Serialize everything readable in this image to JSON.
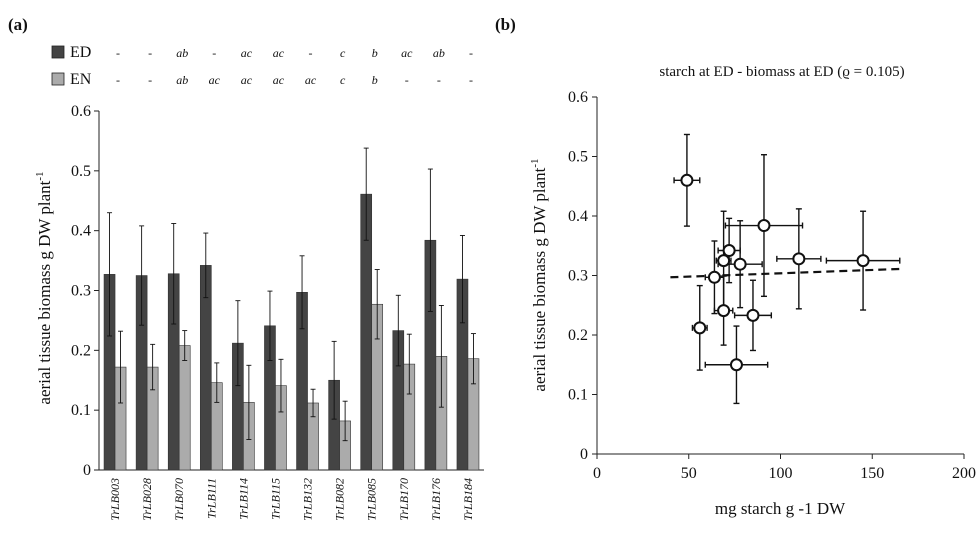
{
  "colors": {
    "ED": "#444444",
    "EN": "#ababab",
    "axis": "#222222",
    "marker_fill": "#ffffff"
  },
  "panels": {
    "a": "(a)",
    "b": "(b)"
  },
  "chart_data": [
    {
      "type": "bar",
      "ylabel": "aerial tissue biomass g DW plant-1",
      "ylabel_sup": "-1",
      "ylim": [
        0,
        0.6
      ],
      "yticks": [
        "0",
        "0.1",
        "0.2",
        "0.3",
        "0.4",
        "0.5",
        "0.6"
      ],
      "categories": [
        "TrLB003",
        "TrLB028",
        "TrLB070",
        "TrLB111",
        "TrLB114",
        "TrLB115",
        "TrLB132",
        "TrLB082",
        "TrLB085",
        "TrLB170",
        "TrLB176",
        "TrLB184"
      ],
      "series": [
        {
          "name": "ED",
          "values": [
            0.327,
            0.325,
            0.328,
            0.342,
            0.212,
            0.241,
            0.297,
            0.15,
            0.461,
            0.233,
            0.384,
            0.319
          ],
          "errors": [
            0.103,
            0.083,
            0.084,
            0.054,
            0.071,
            0.058,
            0.061,
            0.065,
            0.077,
            0.059,
            0.119,
            0.073
          ],
          "letters": [
            "-",
            "-",
            "ab",
            "-",
            "ac",
            "ac",
            "-",
            "c",
            "b",
            "ac",
            "ab",
            "-"
          ]
        },
        {
          "name": "EN",
          "values": [
            0.172,
            0.172,
            0.208,
            0.146,
            0.113,
            0.141,
            0.112,
            0.082,
            0.277,
            0.177,
            0.19,
            0.186
          ],
          "errors": [
            0.06,
            0.038,
            0.025,
            0.033,
            0.062,
            0.044,
            0.023,
            0.033,
            0.058,
            0.05,
            0.085,
            0.042
          ],
          "letters": [
            "-",
            "-",
            "ab",
            "ac",
            "ac",
            "ac",
            "ac",
            "c",
            "b",
            "-",
            "-",
            "-"
          ]
        }
      ]
    },
    {
      "type": "scatter",
      "title": "starch at ED - biomass at ED (ϱ = 0.105)",
      "xlabel": "mg starch g -1 DW",
      "ylabel": "aerial tissue biomass g DW plant-1",
      "ylabel_sup": "-1",
      "xlim": [
        0,
        200
      ],
      "ylim": [
        0,
        0.6
      ],
      "xticks": [
        "0",
        "50",
        "100",
        "150",
        "200"
      ],
      "yticks": [
        "0",
        "0.1",
        "0.2",
        "0.3",
        "0.4",
        "0.5",
        "0.6"
      ],
      "points": [
        {
          "x": 49,
          "y": 0.46,
          "xerr": 7,
          "yerr": 0.077
        },
        {
          "x": 56,
          "y": 0.212,
          "xerr": 4,
          "yerr": 0.071
        },
        {
          "x": 64,
          "y": 0.297,
          "xerr": 5,
          "yerr": 0.061
        },
        {
          "x": 69,
          "y": 0.241,
          "xerr": 5,
          "yerr": 0.058
        },
        {
          "x": 69,
          "y": 0.325,
          "xerr": 4,
          "yerr": 0.083
        },
        {
          "x": 72,
          "y": 0.342,
          "xerr": 6,
          "yerr": 0.054
        },
        {
          "x": 76,
          "y": 0.15,
          "xerr": 17,
          "yerr": 0.065
        },
        {
          "x": 78,
          "y": 0.319,
          "xerr": 12,
          "yerr": 0.073
        },
        {
          "x": 85,
          "y": 0.233,
          "xerr": 10,
          "yerr": 0.059
        },
        {
          "x": 91,
          "y": 0.384,
          "xerr": 21,
          "yerr": 0.119
        },
        {
          "x": 110,
          "y": 0.328,
          "xerr": 12,
          "yerr": 0.084
        },
        {
          "x": 145,
          "y": 0.325,
          "xerr": 20,
          "yerr": 0.083
        }
      ],
      "trendline": {
        "style": "dashed",
        "x": [
          40,
          165
        ],
        "y": [
          0.297,
          0.311
        ]
      }
    }
  ]
}
